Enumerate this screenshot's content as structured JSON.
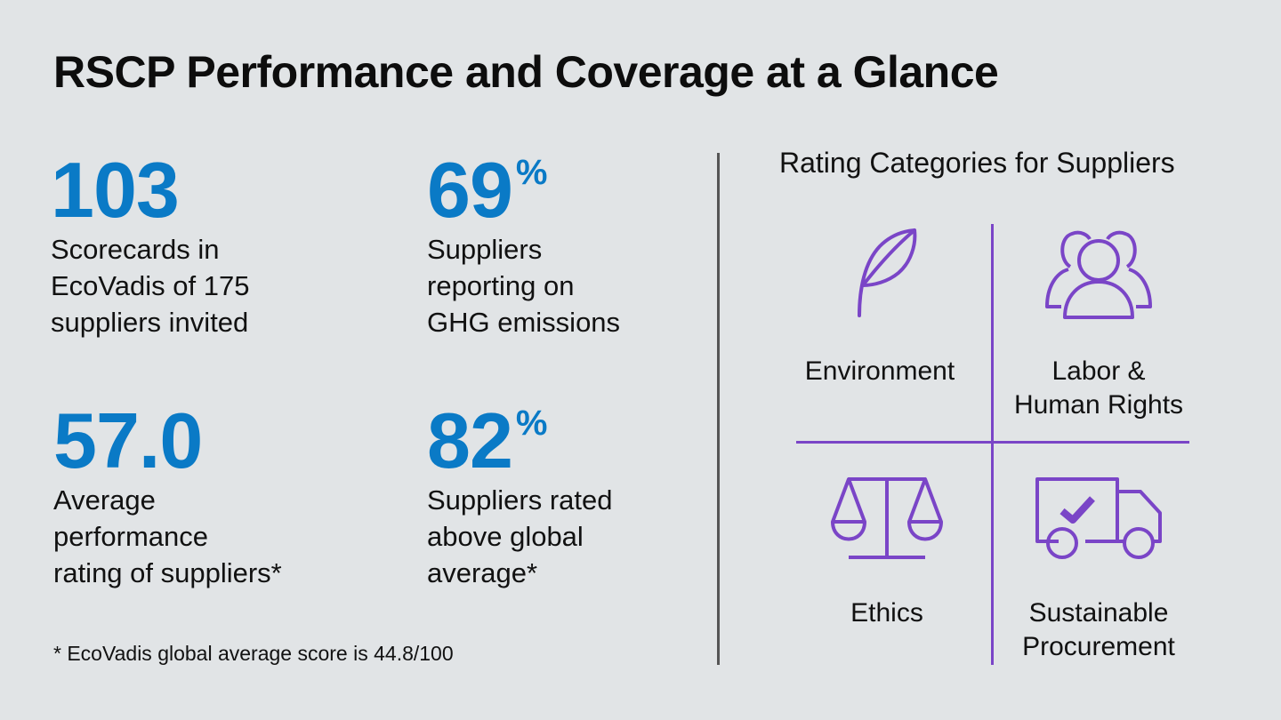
{
  "title": "RSCP Performance and Coverage at a Glance",
  "stats": [
    {
      "value": "103",
      "suffix": "",
      "description": "Scorecards in\nEcoVadis of 175\nsuppliers invited"
    },
    {
      "value": "69",
      "suffix": "%",
      "description": "Suppliers\nreporting on\nGHG emissions"
    },
    {
      "value": "57.0",
      "suffix": "",
      "description": "Average\nperformance\nrating of suppliers*"
    },
    {
      "value": "82",
      "suffix": "%",
      "description": "Suppliers rated\nabove global\naverage*"
    }
  ],
  "footnote": "* EcoVadis global average score is 44.8/100",
  "rating_categories": {
    "title": "Rating Categories for Suppliers",
    "items": [
      {
        "label": "Environment",
        "icon": "leaf-icon"
      },
      {
        "label": "Labor &\nHuman Rights",
        "icon": "people-icon"
      },
      {
        "label": "Ethics",
        "icon": "scales-icon"
      },
      {
        "label": "Sustainable\nProcurement",
        "icon": "truck-check-icon"
      }
    ]
  },
  "colors": {
    "background": "#e1e4e6",
    "stat_accent": "#0a7ac6",
    "icon_accent": "#7a45c7",
    "divider": "#555555"
  }
}
